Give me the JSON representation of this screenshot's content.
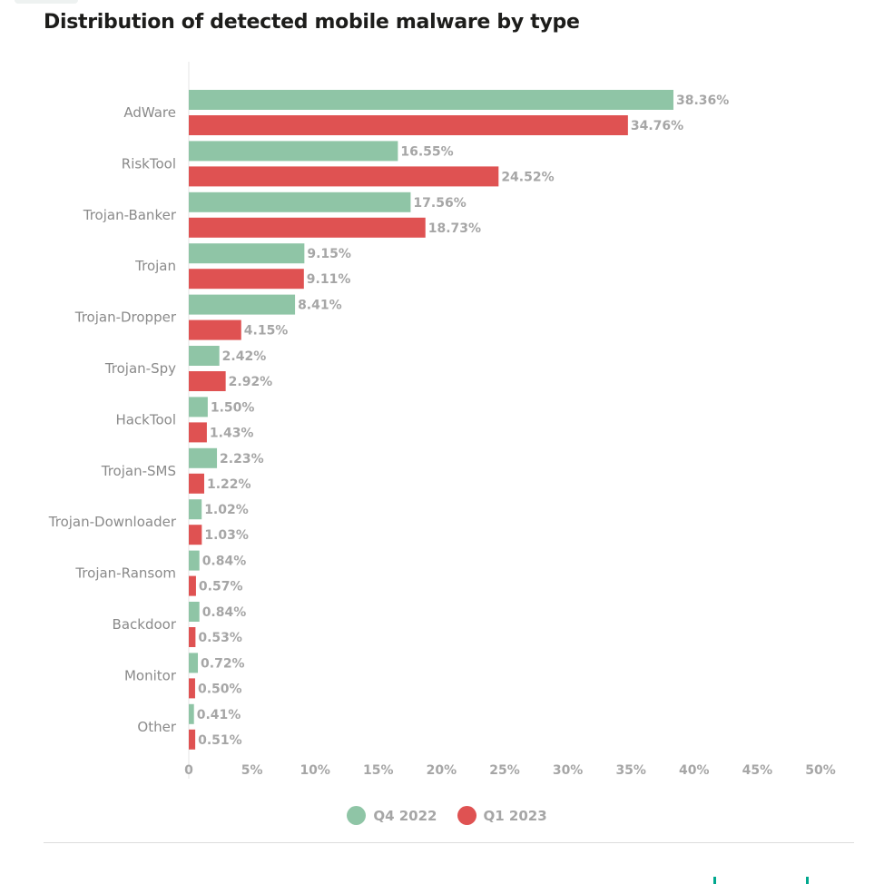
{
  "colors": {
    "q4": "#8fc5a6",
    "q1": "#df5252",
    "brand": "#00a88e"
  },
  "chart_data": {
    "type": "bar",
    "orientation": "horizontal",
    "title": "Distribution of detected mobile malware by type",
    "categories": [
      "AdWare",
      "RiskTool",
      "Trojan-Banker",
      "Trojan",
      "Trojan-Dropper",
      "Trojan-Spy",
      "HackTool",
      "Trojan-SMS",
      "Trojan-Downloader",
      "Trojan-Ransom",
      "Backdoor",
      "Monitor",
      "Other"
    ],
    "series": [
      {
        "name": "Q4 2022",
        "values": [
          38.36,
          16.55,
          17.56,
          9.15,
          8.41,
          2.42,
          1.5,
          2.23,
          1.02,
          0.84,
          0.84,
          0.72,
          0.41
        ]
      },
      {
        "name": "Q1 2023",
        "values": [
          34.76,
          24.52,
          18.73,
          9.11,
          4.15,
          2.92,
          1.43,
          1.22,
          1.03,
          0.57,
          0.53,
          0.5,
          0.51
        ]
      }
    ],
    "value_labels": [
      [
        "38.36%",
        "16.55%",
        "17.56%",
        "9.15%",
        "8.41%",
        "2.42%",
        "1.50%",
        "2.23%",
        "1.02%",
        "0.84%",
        "0.84%",
        "0.72%",
        "0.41%"
      ],
      [
        "34.76%",
        "24.52%",
        "18.73%",
        "9.11%",
        "4.15%",
        "2.92%",
        "1.43%",
        "1.22%",
        "1.03%",
        "0.57%",
        "0.53%",
        "0.50%",
        "0.51%"
      ]
    ],
    "xlim": [
      0,
      50
    ],
    "xticks": [
      0,
      5,
      10,
      15,
      20,
      25,
      30,
      35,
      40,
      45,
      50
    ],
    "xtick_labels": [
      "0",
      "5%",
      "10%",
      "15%",
      "20%",
      "25%",
      "30%",
      "35%",
      "40%",
      "45%",
      "50%"
    ],
    "legend": "bottom-center",
    "grid": false
  },
  "legend": {
    "q4_label": "Q4 2022",
    "q1_label": "Q1 2023"
  }
}
